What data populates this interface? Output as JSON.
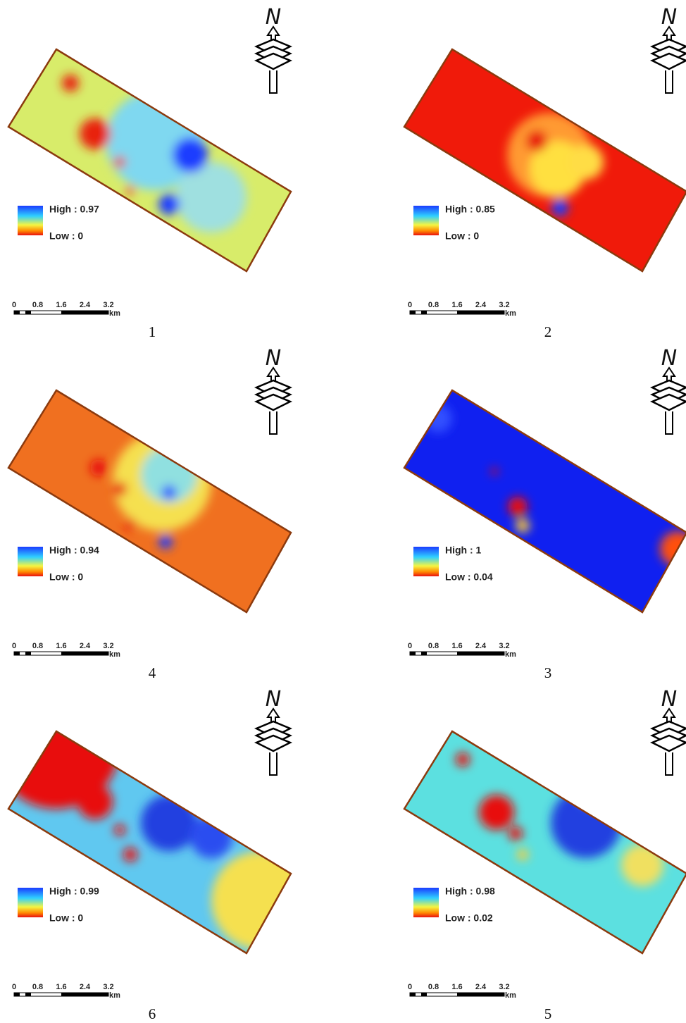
{
  "panels": [
    {
      "label": "1",
      "legend": {
        "high": "High : 0.97",
        "low": "Low : 0"
      }
    },
    {
      "label": "2",
      "legend": {
        "high": "High : 0.85",
        "low": "Low : 0"
      }
    },
    {
      "label": "4",
      "legend": {
        "high": "High : 0.94",
        "low": "Low : 0"
      }
    },
    {
      "label": "3",
      "legend": {
        "high": "High : 1",
        "low": "Low : 0.04"
      }
    },
    {
      "label": "6",
      "legend": {
        "high": "High : 0.99",
        "low": "Low : 0"
      }
    },
    {
      "label": "5",
      "legend": {
        "high": "High : 0.98",
        "low": "Low : 0.02"
      }
    }
  ],
  "scale_bar": {
    "ticks": [
      "0",
      "0.8",
      "1.6",
      "2.4",
      "3.2"
    ],
    "unit": "km"
  },
  "north": "N"
}
